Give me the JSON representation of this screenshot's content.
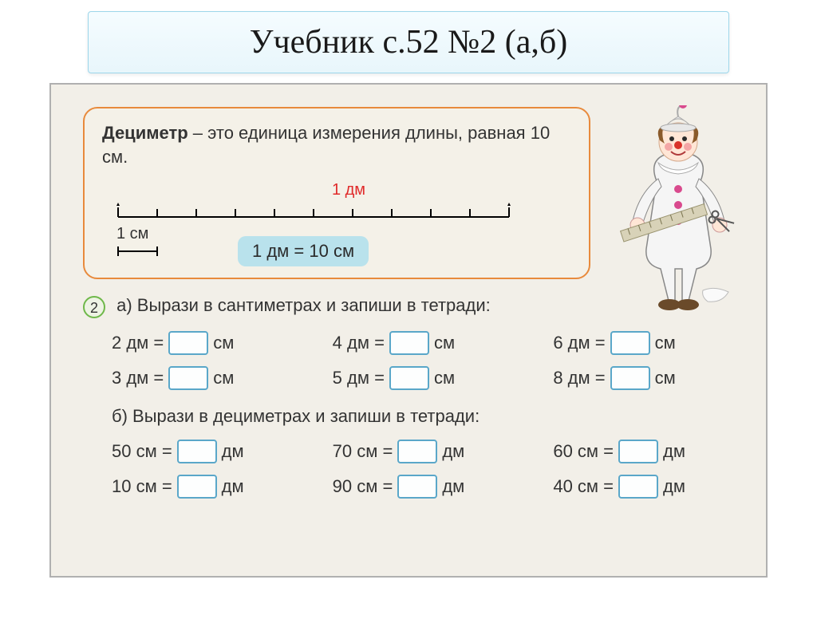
{
  "header": {
    "title": "Учебник с.52 №2 (а,б)"
  },
  "definition": {
    "bold": "Дециметр",
    "rest": " – это единица измерения длины, равная 10 см.",
    "ruler_top_label": "1 дм",
    "cm_label": "1 см",
    "equation": "1 дм  =  10 см",
    "border_color": "#e88a3c",
    "pill_bg": "#b9e2ec",
    "red": "#e02a2a",
    "ticks": 11
  },
  "task": {
    "number": "2",
    "part_a_label": "а) Вырази в сантиметрах и запиши в тетради:",
    "part_b_label": "б) Вырази в дециметрах и запиши в тетради:",
    "rows_a": [
      {
        "lhs": "2 дм =",
        "unit": "см"
      },
      {
        "lhs": "4 дм =",
        "unit": "см"
      },
      {
        "lhs": "6 дм =",
        "unit": "см"
      },
      {
        "lhs": "3 дм =",
        "unit": "см"
      },
      {
        "lhs": "5 дм =",
        "unit": "см"
      },
      {
        "lhs": "8 дм =",
        "unit": "см"
      }
    ],
    "rows_b": [
      {
        "lhs": "50 см =",
        "unit": "дм"
      },
      {
        "lhs": "70 см =",
        "unit": "дм"
      },
      {
        "lhs": "60 см =",
        "unit": "дм"
      },
      {
        "lhs": "10 см =",
        "unit": "дм"
      },
      {
        "lhs": "90 см =",
        "unit": "дм"
      },
      {
        "lhs": "40 см =",
        "unit": "дм"
      }
    ]
  },
  "style": {
    "blank_border": "#5aa7c9",
    "page_bg": "#f2efe8",
    "header_bg_top": "#f5fcff",
    "header_bg_bottom": "#e8f6fb",
    "header_border": "#9dd6ea",
    "task_circle_border": "#6fb84a",
    "font_body": "Arial, sans-serif",
    "font_header": "Times New Roman, serif",
    "header_fontsize_pt": 32,
    "body_fontsize_pt": 16
  },
  "clown": {
    "face": "#ffe6d6",
    "nose": "#d9322a",
    "hat": "#e8e8e8",
    "pom": "#d94a8e",
    "suit": "#f5f5f5",
    "button": "#d94a8e",
    "ruler": "#d8d2b8",
    "hair": "#8a5a2a",
    "cheek": "#f4a6a6",
    "shoe": "#6a4a2a",
    "paper": "#fafafa"
  }
}
